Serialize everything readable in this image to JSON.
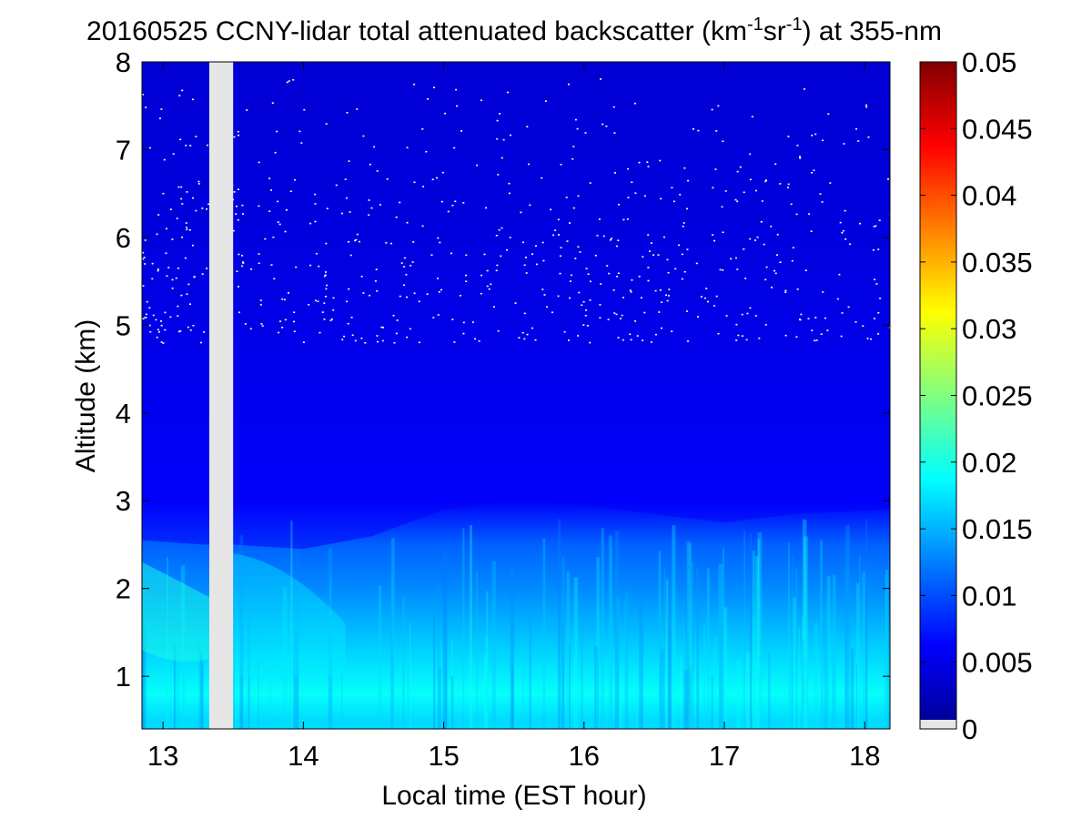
{
  "chart_data": {
    "type": "heatmap",
    "title": {
      "main": "20160525 CCNY-lidar total attenuated backscatter (km",
      "sup1": "-1",
      "mid": "sr",
      "sup2": "-1",
      "end": ") at 355-nm"
    },
    "xlabel": "Local time (EST hour)",
    "ylabel": "Altitude (km)",
    "xlim": [
      12.85,
      18.18
    ],
    "ylim": [
      0.4,
      8
    ],
    "xticks": [
      13,
      14,
      15,
      16,
      17,
      18
    ],
    "xtick_labels": [
      "13",
      "14",
      "15",
      "16",
      "17",
      "18"
    ],
    "yticks": [
      1,
      2,
      3,
      4,
      5,
      6,
      7,
      8
    ],
    "ytick_labels": [
      "1",
      "2",
      "3",
      "4",
      "5",
      "6",
      "7",
      "8"
    ],
    "grid": false,
    "colormap": "jet",
    "colorbar": {
      "range": [
        0,
        0.05
      ],
      "ticks": [
        0,
        0.005,
        0.01,
        0.015,
        0.02,
        0.025,
        0.03,
        0.035,
        0.04,
        0.045,
        0.05
      ],
      "tick_labels": [
        "0",
        "0.005",
        "0.01",
        "0.015",
        "0.02",
        "0.025",
        "0.03",
        "0.035",
        "0.04",
        "0.045",
        "0.05"
      ]
    },
    "data_gap": {
      "x_start": 13.33,
      "x_end": 13.5,
      "color": "#e6e6e6"
    },
    "boundary_layer_top_km": [
      {
        "x": 12.85,
        "y": 2.55
      },
      {
        "x": 13.3,
        "y": 2.5
      },
      {
        "x": 13.5,
        "y": 2.5
      },
      {
        "x": 14.0,
        "y": 2.45
      },
      {
        "x": 14.5,
        "y": 2.6
      },
      {
        "x": 15.0,
        "y": 2.9
      },
      {
        "x": 15.5,
        "y": 3.0
      },
      {
        "x": 16.0,
        "y": 2.95
      },
      {
        "x": 16.5,
        "y": 2.85
      },
      {
        "x": 17.0,
        "y": 2.75
      },
      {
        "x": 17.5,
        "y": 2.85
      },
      {
        "x": 18.18,
        "y": 2.9
      }
    ],
    "backscatter_profile": [
      {
        "altitude_km": 0.5,
        "value": 0.017
      },
      {
        "altitude_km": 0.8,
        "value": 0.019
      },
      {
        "altitude_km": 1.2,
        "value": 0.017
      },
      {
        "altitude_km": 1.6,
        "value": 0.015
      },
      {
        "altitude_km": 2.0,
        "value": 0.013
      },
      {
        "altitude_km": 2.5,
        "value": 0.011
      },
      {
        "altitude_km": 3.0,
        "value": 0.006
      },
      {
        "altitude_km": 4.0,
        "value": 0.005
      },
      {
        "altitude_km": 6.0,
        "value": 0.003
      },
      {
        "altitude_km": 8.0,
        "value": 0.002
      }
    ],
    "noise_speckle_above_km": 4.8
  }
}
